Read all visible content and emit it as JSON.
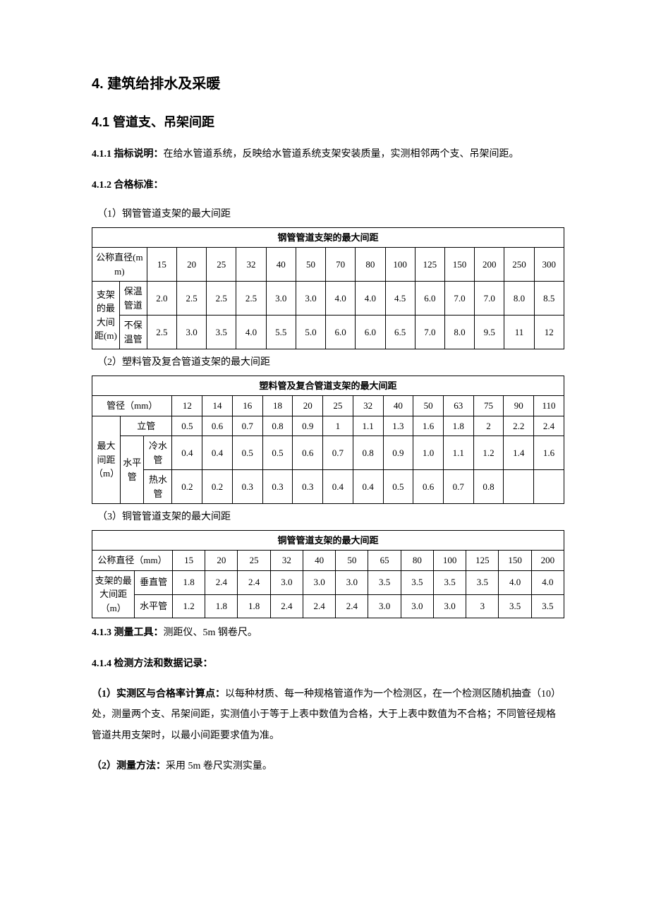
{
  "h1": "4. 建筑给排水及采暖",
  "h2": "4.1 管道支、吊架间距",
  "p411_label": "4.1.1 指标说明：",
  "p411_text": "在给水管道系统，反映给水管道系统支架安装质量，实测相邻两个支、吊架间距。",
  "p412": "4.1.2 合格标准：",
  "cap1": "（1）钢管管道支架的最大间距",
  "t1": {
    "title": "钢管管道支架的最大间距",
    "rowhead": "公称直径(mm)",
    "dia": [
      "15",
      "20",
      "25",
      "32",
      "40",
      "50",
      "70",
      "80",
      "100",
      "125",
      "150",
      "200",
      "250",
      "300"
    ],
    "leftspan": "支架的最大间距(m)",
    "r1label": "保温管道",
    "r1": [
      "2.0",
      "2.5",
      "2.5",
      "2.5",
      "3.0",
      "3.0",
      "4.0",
      "4.0",
      "4.5",
      "6.0",
      "7.0",
      "7.0",
      "8.0",
      "8.5"
    ],
    "r2label": "不保温管",
    "r2": [
      "2.5",
      "3.0",
      "3.5",
      "4.0",
      "5.5",
      "5.0",
      "6.0",
      "6.0",
      "6.5",
      "7.0",
      "8.0",
      "9.5",
      "11",
      "12"
    ]
  },
  "cap2": "（2）塑料管及复合管道支架的最大间距",
  "t2": {
    "title": "塑料管及复合管道支架的最大间距",
    "rowhead": "管径（mm）",
    "dia": [
      "12",
      "14",
      "16",
      "18",
      "20",
      "25",
      "32",
      "40",
      "50",
      "63",
      "75",
      "90",
      "110"
    ],
    "leftspan": "最大间距（m）",
    "r1label": "立管",
    "r1": [
      "0.5",
      "0.6",
      "0.7",
      "0.8",
      "0.9",
      "1",
      "1.1",
      "1.3",
      "1.6",
      "1.8",
      "2",
      "2.2",
      "2.4"
    ],
    "hsub": "水平管",
    "r2label": "冷水管",
    "r2": [
      "0.4",
      "0.4",
      "0.5",
      "0.5",
      "0.6",
      "0.7",
      "0.8",
      "0.9",
      "1.0",
      "1.1",
      "1.2",
      "1.4",
      "1.6"
    ],
    "r3label": "热水管",
    "r3": [
      "0.2",
      "0.2",
      "0.3",
      "0.3",
      "0.3",
      "0.4",
      "0.4",
      "0.5",
      "0.6",
      "0.7",
      "0.8",
      "",
      ""
    ]
  },
  "cap3": "（3）铜管管道支架的最大间距",
  "t3": {
    "title": "铜管管道支架的最大间距",
    "rowhead": "公称直径（mm）",
    "dia": [
      "15",
      "20",
      "25",
      "32",
      "40",
      "50",
      "65",
      "80",
      "100",
      "125",
      "150",
      "200"
    ],
    "leftspan": "支架的最大间距（m）",
    "r1label": "垂直管",
    "r1": [
      "1.8",
      "2.4",
      "2.4",
      "3.0",
      "3.0",
      "3.0",
      "3.5",
      "3.5",
      "3.5",
      "3.5",
      "4.0",
      "4.0"
    ],
    "r2label": "水平管",
    "r2": [
      "1.2",
      "1.8",
      "1.8",
      "2.4",
      "2.4",
      "2.4",
      "3.0",
      "3.0",
      "3.0",
      "3",
      "3.5",
      "3.5"
    ]
  },
  "p413_label": "4.1.3 测量工具：",
  "p413_text": "测距仪、5m 钢卷尺。",
  "p414": "4.1.4 检测方法和数据记录：",
  "p414a_label": "（1）实测区与合格率计算点：",
  "p414a_text": "以每种材质、每一种规格管道作为一个检测区，在一个检测区随机抽查（10）处，测量两个支、吊架间距，实测值小于等于上表中数值为合格，大于上表中数值为不合格；不同管径规格管道共用支架时，以最小间距要求值为准。",
  "p414b_label": "（2）测量方法：",
  "p414b_text": "采用 5m 卷尺实测实量。"
}
